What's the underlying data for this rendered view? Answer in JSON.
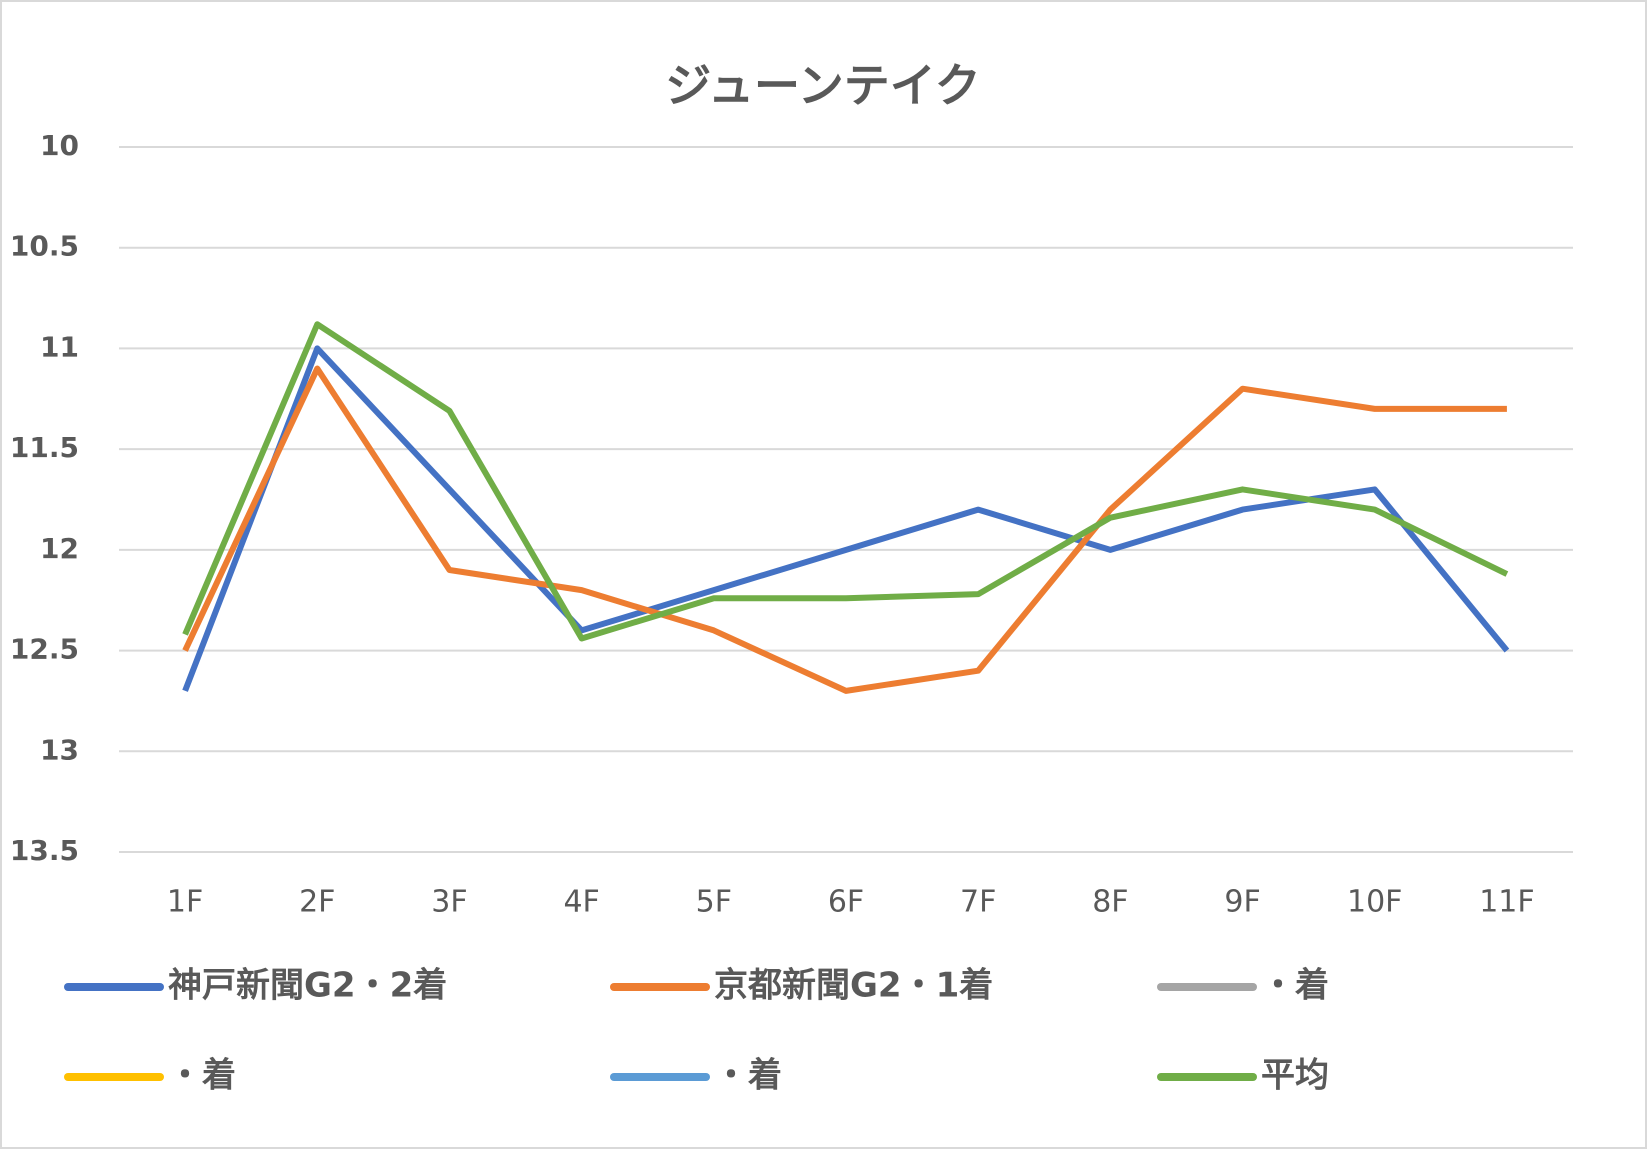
{
  "chart_data": {
    "type": "line",
    "title": "ジューンテイク",
    "categories": [
      "1F",
      "2F",
      "3F",
      "4F",
      "5F",
      "6F",
      "7F",
      "8F",
      "9F",
      "10F",
      "11F"
    ],
    "series": [
      {
        "name": "神戸新聞G2・2着",
        "color": "#4472c4",
        "values": [
          12.7,
          11.0,
          11.7,
          12.4,
          12.2,
          12.0,
          11.8,
          12.0,
          11.8,
          11.7,
          12.5
        ]
      },
      {
        "name": "京都新聞G2・1着",
        "color": "#ed7d31",
        "values": [
          12.5,
          11.1,
          12.1,
          12.2,
          12.4,
          12.7,
          12.6,
          11.8,
          11.2,
          11.3,
          11.3
        ]
      },
      {
        "name": "・着",
        "color": "#a5a5a5",
        "values": [
          null,
          null,
          null,
          null,
          null,
          null,
          null,
          null,
          null,
          null,
          null
        ]
      },
      {
        "name": "・着",
        "color": "#ffc000",
        "values": [
          null,
          null,
          null,
          null,
          null,
          null,
          null,
          null,
          null,
          null,
          null
        ]
      },
      {
        "name": "・着",
        "color": "#5b9bd5",
        "values": [
          null,
          null,
          null,
          null,
          null,
          null,
          null,
          null,
          null,
          null,
          null
        ]
      },
      {
        "name": "平均",
        "color": "#70ad47",
        "values": [
          12.42,
          10.88,
          11.31,
          12.44,
          12.24,
          12.24,
          12.22,
          11.84,
          11.7,
          11.8,
          12.12
        ]
      }
    ],
    "ylim": [
      10,
      13.5
    ],
    "y_reversed": true,
    "yticks": [
      10,
      10.5,
      11,
      11.5,
      12,
      12.5,
      13,
      13.5
    ],
    "grid": true,
    "legend": "bottom"
  }
}
